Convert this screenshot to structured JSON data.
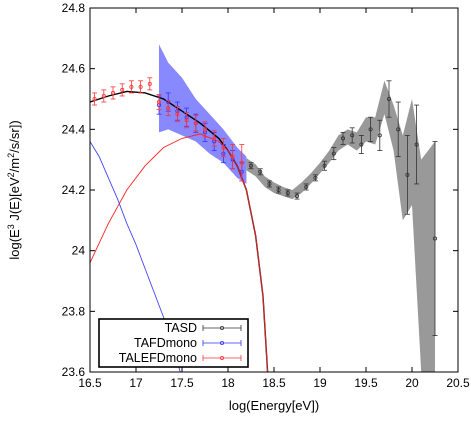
{
  "chart_data": {
    "type": "scatter",
    "xlabel": "log(Energy[eV])",
    "ylabel_parts": {
      "a": "log(E",
      "a_sup": "3",
      "b": " J(E)[eV",
      "b_sup": "2",
      "c": "/m",
      "c_sup": "2",
      "d": "/s/sr])"
    },
    "xlim": [
      16.5,
      20.5
    ],
    "ylim": [
      23.6,
      24.8
    ],
    "grid": false,
    "legend_position": "bottom-left",
    "x_ticks": [
      {
        "value": 16.5,
        "label": "16.5"
      },
      {
        "value": 17,
        "label": "17"
      },
      {
        "value": 17.5,
        "label": "17.5"
      },
      {
        "value": 18,
        "label": "18"
      },
      {
        "value": 18.5,
        "label": "18.5"
      },
      {
        "value": 19,
        "label": "19"
      },
      {
        "value": 19.5,
        "label": "19.5"
      },
      {
        "value": 20,
        "label": "20"
      },
      {
        "value": 20.5,
        "label": "20.5"
      }
    ],
    "y_ticks": [
      {
        "value": 23.6,
        "label": "23.6"
      },
      {
        "value": 23.8,
        "label": "23.8"
      },
      {
        "value": 24,
        "label": "24"
      },
      {
        "value": 24.2,
        "label": "24.2"
      },
      {
        "value": 24.4,
        "label": "24.4"
      },
      {
        "value": 24.6,
        "label": "24.6"
      },
      {
        "value": 24.8,
        "label": "24.8"
      }
    ],
    "series": [
      {
        "name": "TASD",
        "color": "#333333",
        "band_color": "#999999",
        "points": [
          [
            18.25,
            24.28,
            0.01
          ],
          [
            18.35,
            24.26,
            0.01
          ],
          [
            18.45,
            24.22,
            0.01
          ],
          [
            18.55,
            24.2,
            0.01
          ],
          [
            18.65,
            24.19,
            0.01
          ],
          [
            18.75,
            24.18,
            0.01
          ],
          [
            18.85,
            24.21,
            0.01
          ],
          [
            18.95,
            24.24,
            0.01
          ],
          [
            19.05,
            24.28,
            0.015
          ],
          [
            19.15,
            24.32,
            0.02
          ],
          [
            19.25,
            24.37,
            0.02
          ],
          [
            19.35,
            24.38,
            0.025
          ],
          [
            19.45,
            24.35,
            0.03
          ],
          [
            19.55,
            24.4,
            0.04
          ],
          [
            19.65,
            24.38,
            0.05
          ],
          [
            19.75,
            24.5,
            0.06
          ],
          [
            19.85,
            24.4,
            0.09
          ],
          [
            19.95,
            24.25,
            0.13
          ],
          [
            20.05,
            24.35,
            0.13
          ],
          [
            20.25,
            24.04,
            0.32
          ]
        ],
        "band": [
          [
            18.2,
            24.265,
            24.305
          ],
          [
            18.3,
            24.245,
            24.285
          ],
          [
            18.4,
            24.21,
            24.245
          ],
          [
            18.5,
            24.19,
            24.225
          ],
          [
            18.6,
            24.18,
            24.21
          ],
          [
            18.7,
            24.17,
            24.2
          ],
          [
            18.8,
            24.19,
            24.225
          ],
          [
            18.9,
            24.22,
            24.255
          ],
          [
            19.0,
            24.255,
            24.29
          ],
          [
            19.1,
            24.29,
            24.33
          ],
          [
            19.2,
            24.33,
            24.38
          ],
          [
            19.3,
            24.35,
            24.4
          ],
          [
            19.4,
            24.33,
            24.39
          ],
          [
            19.5,
            24.36,
            24.44
          ],
          [
            19.6,
            24.35,
            24.44
          ],
          [
            19.7,
            24.45,
            24.56
          ],
          [
            19.8,
            24.33,
            24.48
          ],
          [
            19.9,
            24.1,
            24.38
          ],
          [
            20.0,
            24.15,
            24.5
          ],
          [
            20.1,
            23.6,
            24.3
          ],
          [
            20.25,
            23.6,
            24.36
          ]
        ]
      },
      {
        "name": "TAFDmono",
        "color": "#3333ff",
        "band_color": "#8888ff",
        "points": [
          [
            17.25,
            24.48,
            0.03
          ],
          [
            17.35,
            24.49,
            0.03
          ],
          [
            17.45,
            24.46,
            0.03
          ],
          [
            17.55,
            24.44,
            0.03
          ],
          [
            17.65,
            24.42,
            0.03
          ],
          [
            17.75,
            24.39,
            0.03
          ],
          [
            17.85,
            24.36,
            0.03
          ],
          [
            17.95,
            24.32,
            0.03
          ],
          [
            18.05,
            24.3,
            0.03
          ],
          [
            18.15,
            24.26,
            0.03
          ]
        ],
        "band": [
          [
            17.25,
            24.39,
            24.68
          ],
          [
            17.35,
            24.4,
            24.62
          ],
          [
            17.5,
            24.38,
            24.57
          ],
          [
            17.65,
            24.36,
            24.5
          ],
          [
            17.8,
            24.32,
            24.45
          ],
          [
            17.95,
            24.29,
            24.4
          ],
          [
            18.1,
            24.24,
            24.34
          ],
          [
            18.2,
            24.22,
            24.31
          ]
        ]
      },
      {
        "name": "TALEFDmono",
        "color": "#ff3333",
        "points": [
          [
            16.55,
            24.5,
            0.02
          ],
          [
            16.65,
            24.51,
            0.02
          ],
          [
            16.75,
            24.52,
            0.02
          ],
          [
            16.85,
            24.53,
            0.02
          ],
          [
            16.95,
            24.54,
            0.02
          ],
          [
            17.05,
            24.54,
            0.02
          ],
          [
            17.15,
            24.55,
            0.02
          ],
          [
            17.25,
            24.49,
            0.025
          ],
          [
            17.35,
            24.47,
            0.025
          ],
          [
            17.45,
            24.45,
            0.025
          ],
          [
            17.55,
            24.43,
            0.025
          ],
          [
            17.65,
            24.42,
            0.025
          ],
          [
            17.75,
            24.4,
            0.025
          ],
          [
            17.85,
            24.37,
            0.025
          ],
          [
            17.95,
            24.34,
            0.03
          ],
          [
            18.05,
            24.31,
            0.04
          ],
          [
            18.15,
            24.29,
            0.06
          ]
        ]
      }
    ],
    "model_curves": [
      {
        "color": "#000000",
        "points": [
          [
            16.5,
            24.49
          ],
          [
            16.7,
            24.51
          ],
          [
            16.9,
            24.525
          ],
          [
            17.1,
            24.52
          ],
          [
            17.3,
            24.5
          ],
          [
            17.5,
            24.46
          ],
          [
            17.7,
            24.42
          ],
          [
            17.9,
            24.37
          ],
          [
            18.0,
            24.33
          ],
          [
            18.1,
            24.28
          ],
          [
            18.2,
            24.2
          ],
          [
            18.3,
            24.05
          ],
          [
            18.38,
            23.85
          ],
          [
            18.43,
            23.6
          ]
        ]
      },
      {
        "color": "#ff2222",
        "points": [
          [
            16.5,
            23.96
          ],
          [
            16.7,
            24.09
          ],
          [
            16.9,
            24.2
          ],
          [
            17.1,
            24.28
          ],
          [
            17.3,
            24.34
          ],
          [
            17.5,
            24.37
          ],
          [
            17.7,
            24.385
          ],
          [
            17.9,
            24.36
          ],
          [
            18.0,
            24.33
          ],
          [
            18.1,
            24.28
          ],
          [
            18.2,
            24.2
          ],
          [
            18.3,
            24.05
          ],
          [
            18.38,
            23.85
          ],
          [
            18.43,
            23.6
          ]
        ]
      },
      {
        "color": "#4444ff",
        "points": [
          [
            16.5,
            24.36
          ],
          [
            16.6,
            24.31
          ],
          [
            16.7,
            24.24
          ],
          [
            16.8,
            24.17
          ],
          [
            16.9,
            24.09
          ],
          [
            17.0,
            24.02
          ],
          [
            17.1,
            23.94
          ],
          [
            17.2,
            23.86
          ],
          [
            17.3,
            23.78
          ],
          [
            17.4,
            23.69
          ],
          [
            17.48,
            23.6
          ]
        ]
      }
    ]
  }
}
